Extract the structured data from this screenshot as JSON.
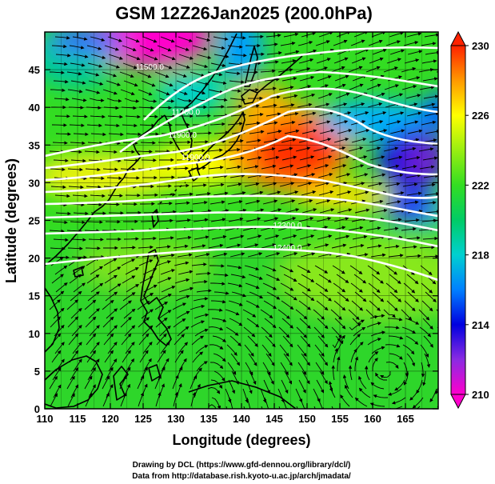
{
  "title": "GSM 12Z26Jan2025 (200.0hPa)",
  "xlabel": "Longitude (degrees)",
  "ylabel": "Latitude  (degrees)",
  "credits": [
    "Drawing by DCL (https://www.gfd-dennou.org/library/dcl/)",
    "Data from http://database.rish.kyoto-u.ac.jp/arch/jmadata/"
  ],
  "colors": {
    "land_outline": "#000000",
    "contour": "#ffffff",
    "arrows": "#000000"
  },
  "chart_data": {
    "type": "heatmap",
    "xlim": [
      110,
      170
    ],
    "ylim": [
      0,
      50
    ],
    "x_ticks": [
      110,
      115,
      120,
      125,
      130,
      135,
      140,
      145,
      150,
      155,
      160,
      165
    ],
    "y_ticks": [
      0,
      5,
      10,
      15,
      20,
      25,
      30,
      35,
      40,
      45
    ],
    "grid": true,
    "colorbar": {
      "min": 210,
      "max": 230,
      "ticks": [
        210,
        214,
        218,
        222,
        226,
        230
      ],
      "stops": [
        {
          "value": 210,
          "color": "#ff00cc"
        },
        {
          "value": 212,
          "color": "#8a2be2"
        },
        {
          "value": 214,
          "color": "#0000e0"
        },
        {
          "value": 216,
          "color": "#0080ff"
        },
        {
          "value": 218,
          "color": "#00d0d0"
        },
        {
          "value": 220,
          "color": "#00cc66"
        },
        {
          "value": 222,
          "color": "#33dd22"
        },
        {
          "value": 224,
          "color": "#99ee11"
        },
        {
          "value": 226,
          "color": "#ffff00"
        },
        {
          "value": 228,
          "color": "#ff9900"
        },
        {
          "value": 230,
          "color": "#ff2200"
        }
      ]
    },
    "contour_labels": [
      {
        "text": "11500.0",
        "lon": 126,
        "lat": 45
      },
      {
        "text": "11700.0",
        "lon": 131.5,
        "lat": 39
      },
      {
        "text": "11900.0",
        "lon": 131,
        "lat": 36
      },
      {
        "text": "11900.0",
        "lon": 133,
        "lat": 33
      },
      {
        "text": "12300.0",
        "lon": 147,
        "lat": 24
      },
      {
        "text": "12400.0",
        "lon": 147,
        "lat": 21
      }
    ]
  }
}
